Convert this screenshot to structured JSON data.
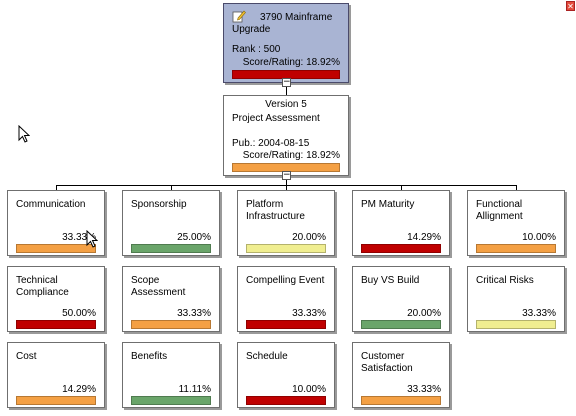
{
  "colors": {
    "red": "#c00000",
    "orange": "#f4a044",
    "green": "#6aa56a",
    "yellow": "#f0ee90"
  },
  "root": {
    "title": "3790 Mainframe Upgrade",
    "rank": "Rank : 500",
    "score": "Score/Rating: 18.92%",
    "bar_color": "#c00000",
    "icon": "pencil-note-icon"
  },
  "version": {
    "title": "Version 5",
    "subtitle": "Project Assessment",
    "pub": "Pub.: 2004-08-15",
    "score": "Score/Rating: 18.92%",
    "bar_color": "#f4a044"
  },
  "criteria": [
    {
      "label": "Communication",
      "pct": "33.33%",
      "color": "orange"
    },
    {
      "label": "Sponsorship",
      "pct": "25.00%",
      "color": "green"
    },
    {
      "label": "Platform Infrastructure",
      "pct": "20.00%",
      "color": "yellow"
    },
    {
      "label": "PM Maturity",
      "pct": "14.29%",
      "color": "red"
    },
    {
      "label": "Functional Allignment",
      "pct": "10.00%",
      "color": "orange"
    },
    {
      "label": "Technical Compliance",
      "pct": "50.00%",
      "color": "red"
    },
    {
      "label": "Scope Assessment",
      "pct": "33.33%",
      "color": "orange"
    },
    {
      "label": "Compelling Event",
      "pct": "33.33%",
      "color": "red"
    },
    {
      "label": "Buy VS Build",
      "pct": "20.00%",
      "color": "green"
    },
    {
      "label": "Critical Risks",
      "pct": "33.33%",
      "color": "yellow"
    },
    {
      "label": "Cost",
      "pct": "14.29%",
      "color": "orange"
    },
    {
      "label": "Benefits",
      "pct": "11.11%",
      "color": "green"
    },
    {
      "label": "Schedule",
      "pct": "10.00%",
      "color": "red"
    },
    {
      "label": "Customer Satisfaction",
      "pct": "33.33%",
      "color": "orange"
    }
  ],
  "window": {
    "close_icon": "close-icon",
    "close_glyph": "✕"
  },
  "cursors": [
    "arrow-cursor-icon",
    "arrow-cursor-icon"
  ]
}
